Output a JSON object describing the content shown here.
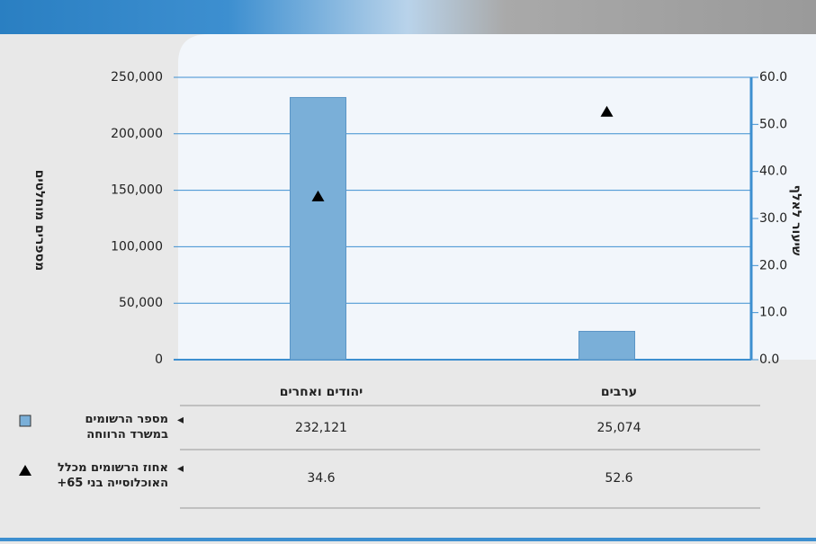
{
  "chart_data": {
    "type": "bar",
    "categories": [
      "יהודים ואחרים",
      "ערבים"
    ],
    "series": [
      {
        "name": "מספר הרשומים במשרד הרווחה",
        "type": "bar",
        "color": "#7aafd8",
        "values": [
          232121,
          25074
        ],
        "value_labels": [
          "232,121",
          "25,074"
        ]
      },
      {
        "name": "אחוז הרשומים מכלל האוכלוסייה בני 65+",
        "type": "scatter",
        "marker": "triangle",
        "color": "#000000",
        "axis": "y2",
        "values": [
          34.6,
          52.6
        ]
      }
    ],
    "y_label": "מספרים מוחלטים",
    "y2_label": "שיעור לאלף",
    "ylim": [
      0,
      250000
    ],
    "yticks": [
      0,
      {
        "value": 50000,
        "label": "50,000"
      },
      {
        "value": 100000,
        "label": "100,000"
      },
      {
        "value": 150000,
        "label": "150,000"
      },
      {
        "value": 200000,
        "label": "200,000"
      },
      {
        "value": 250000,
        "label": "250,000"
      }
    ],
    "y2lim": [
      0,
      60
    ],
    "y2ticks": [
      {
        "value": 0,
        "label": "0.0"
      },
      {
        "value": 10,
        "label": "10.0"
      },
      {
        "value": 20,
        "label": "20.0"
      },
      {
        "value": 30,
        "label": "30.0"
      },
      {
        "value": 40,
        "label": "40.0"
      },
      {
        "value": 50,
        "label": "50.0"
      },
      {
        "value": 60,
        "label": "60.0"
      }
    ],
    "grid": true
  }
}
